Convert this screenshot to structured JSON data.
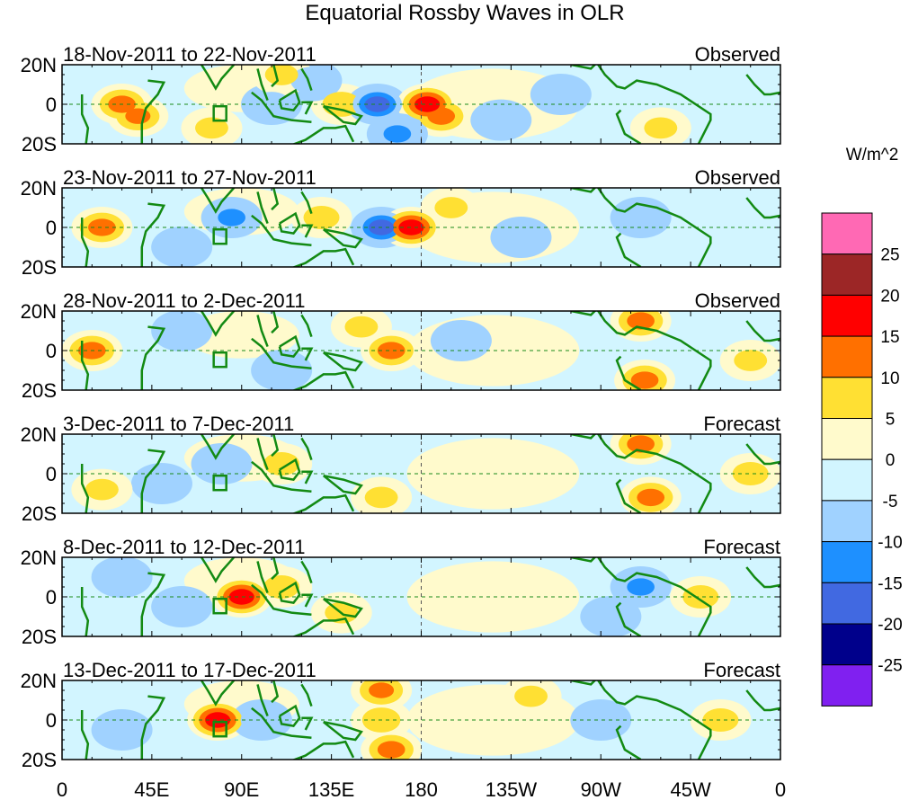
{
  "title": "Equatorial Rossby Waves in OLR",
  "units": "W/m^2",
  "lat_labels": [
    "20N",
    "0",
    "20S"
  ],
  "lon_labels": [
    "0",
    "45E",
    "90E",
    "135E",
    "180",
    "135W",
    "90W",
    "45W",
    "0"
  ],
  "colorbar": {
    "colors": [
      "#ff69b4",
      "#9c2626",
      "#ff0000",
      "#ff7000",
      "#ffe033",
      "#fffacc",
      "#d2f5ff",
      "#a0d2ff",
      "#1e90ff",
      "#4169e1",
      "#00008b",
      "#8020f0"
    ],
    "labels": [
      "25",
      "20",
      "15",
      "10",
      "5",
      "0",
      "-5",
      "-10",
      "-15",
      "-20",
      "-25"
    ]
  },
  "panels": [
    {
      "period": "18-Nov-2011 to 22-Nov-2011",
      "type": "Observed",
      "anomalies": [
        [
          30,
          0,
          12
        ],
        [
          38,
          -6,
          11
        ],
        [
          75,
          -12,
          6
        ],
        [
          140,
          0,
          8
        ],
        [
          158,
          0,
          -18
        ],
        [
          183,
          0,
          18
        ],
        [
          190,
          -6,
          12
        ],
        [
          168,
          -15,
          -12
        ],
        [
          105,
          0,
          -8
        ],
        [
          125,
          12,
          -10
        ],
        [
          250,
          5,
          -8
        ],
        [
          300,
          -12,
          6
        ],
        [
          110,
          15,
          6
        ],
        [
          220,
          -8,
          -6
        ]
      ]
    },
    {
      "period": "23-Nov-2011 to 27-Nov-2011",
      "type": "Observed",
      "anomalies": [
        [
          20,
          0,
          12
        ],
        [
          85,
          5,
          -12
        ],
        [
          160,
          0,
          -18
        ],
        [
          175,
          0,
          18
        ],
        [
          130,
          5,
          7
        ],
        [
          290,
          5,
          -8
        ],
        [
          195,
          10,
          6
        ],
        [
          60,
          -10,
          -6
        ],
        [
          230,
          -5,
          -5
        ]
      ]
    },
    {
      "period": "28-Nov-2011 to 2-Dec-2011",
      "type": "Observed",
      "anomalies": [
        [
          15,
          0,
          12
        ],
        [
          60,
          10,
          -8
        ],
        [
          165,
          0,
          12
        ],
        [
          290,
          15,
          12
        ],
        [
          292,
          -15,
          12
        ],
        [
          200,
          5,
          -5
        ],
        [
          110,
          -10,
          -8
        ],
        [
          150,
          12,
          6
        ],
        [
          345,
          -5,
          6
        ]
      ]
    },
    {
      "period": "3-Dec-2011 to 7-Dec-2011",
      "type": "Forecast",
      "anomalies": [
        [
          50,
          -5,
          -10
        ],
        [
          110,
          5,
          7
        ],
        [
          295,
          -12,
          12
        ],
        [
          290,
          15,
          12
        ],
        [
          345,
          0,
          7
        ],
        [
          80,
          5,
          -8
        ],
        [
          20,
          -8,
          6
        ],
        [
          160,
          -12,
          6
        ]
      ]
    },
    {
      "period": "8-Dec-2011 to 12-Dec-2011",
      "type": "Forecast",
      "anomalies": [
        [
          90,
          0,
          18
        ],
        [
          110,
          5,
          7
        ],
        [
          60,
          -5,
          -10
        ],
        [
          290,
          5,
          -12
        ],
        [
          275,
          -10,
          -8
        ],
        [
          320,
          0,
          7
        ],
        [
          140,
          -8,
          6
        ],
        [
          30,
          10,
          -6
        ]
      ]
    },
    {
      "period": "13-Dec-2011 to 17-Dec-2011",
      "type": "Forecast",
      "anomalies": [
        [
          78,
          0,
          18
        ],
        [
          100,
          0,
          -10
        ],
        [
          160,
          0,
          8
        ],
        [
          165,
          -15,
          12
        ],
        [
          235,
          12,
          6
        ],
        [
          330,
          0,
          7
        ],
        [
          30,
          -5,
          -8
        ],
        [
          160,
          15,
          11
        ],
        [
          270,
          0,
          -6
        ]
      ]
    }
  ]
}
